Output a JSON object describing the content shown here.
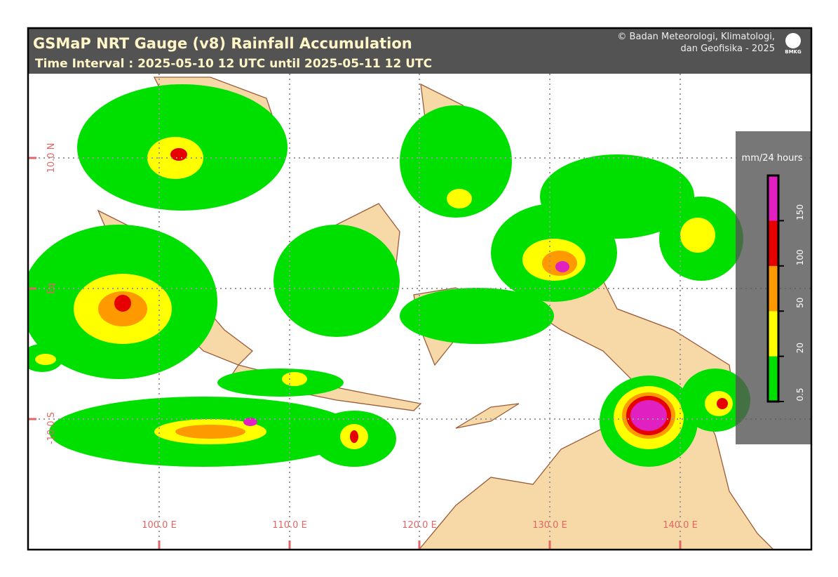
{
  "header": {
    "title": "GSMaP NRT Gauge (v8) Rainfall Accumulation",
    "subtitle": "Time Interval : 2025-05-10 12 UTC until 2025-05-11 12 UTC",
    "credit_line1": "© Badan Meteorologi, Klimatologi,",
    "credit_line2": "dan Geofisika -  2025",
    "logo": "BMKG"
  },
  "map": {
    "lon_labels": [
      "100.0 E",
      "110.0 E",
      "120.0 E",
      "130.0 E",
      "140.0 E"
    ],
    "lat_labels": [
      "10.0 N",
      "Eq",
      "-10.0 S"
    ]
  },
  "legend": {
    "unit": "mm/24 hours",
    "ticks": [
      0.5,
      20,
      50,
      100,
      150
    ],
    "colors": [
      "#00e000",
      "#ffff00",
      "#ff9900",
      "#e60000",
      "#e020c0"
    ]
  }
}
